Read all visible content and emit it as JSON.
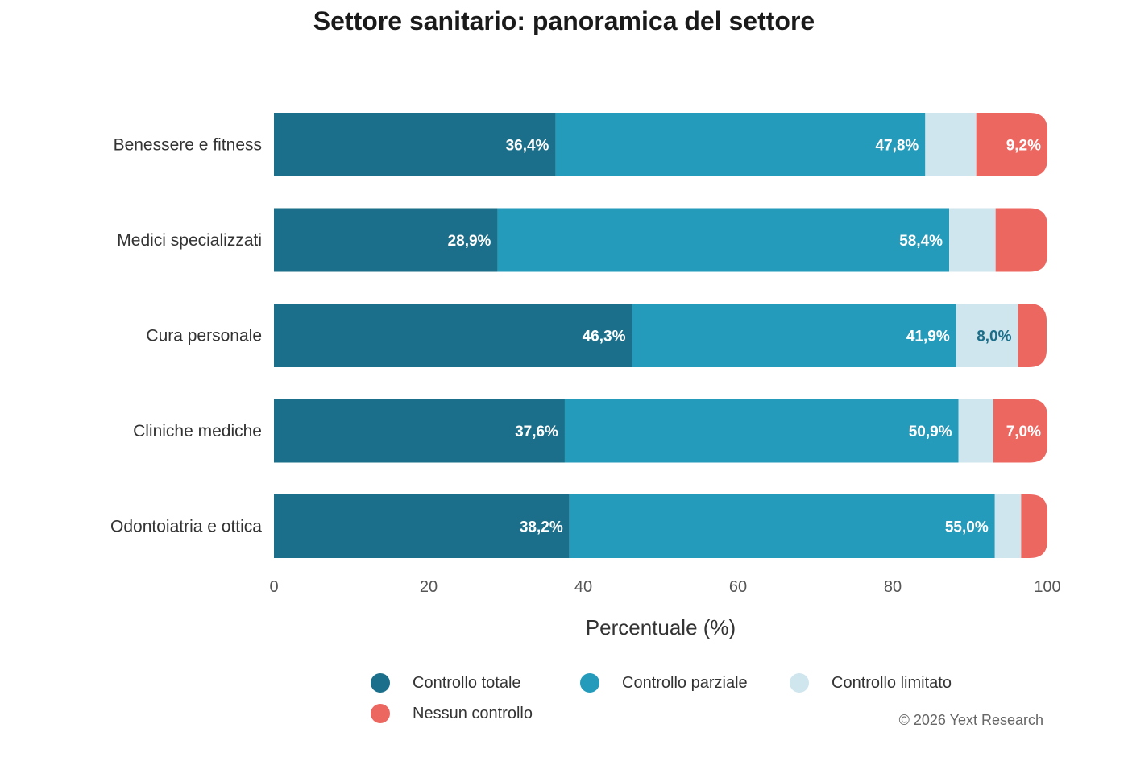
{
  "chart_data": {
    "type": "bar",
    "orientation": "horizontal",
    "stacked": true,
    "title": "Settore sanitario: panoramica del settore",
    "xlabel": "Percentuale (%)",
    "ylabel": "",
    "xlim": [
      0,
      100
    ],
    "xticks": [
      "0",
      "20",
      "40",
      "60",
      "80",
      "100"
    ],
    "categories": [
      "Benessere e fitness",
      "Medici specializzati",
      "Cura personale",
      "Cliniche mediche",
      "Odontoiatria e ottica"
    ],
    "series": [
      {
        "name": "Controllo totale",
        "color": "#1c6f8a",
        "label_color": "#ffffff",
        "values": [
          36.4,
          28.9,
          46.3,
          37.6,
          38.2
        ],
        "labels": [
          "36,4%",
          "28,9%",
          "46,3%",
          "37,6%",
          "38,2%"
        ]
      },
      {
        "name": "Controllo parziale",
        "color": "#259bbb",
        "label_color": "#ffffff",
        "values": [
          47.8,
          58.4,
          41.9,
          50.9,
          55.0
        ],
        "labels": [
          "47,8%",
          "58,4%",
          "41,9%",
          "50,9%",
          "55,0%"
        ]
      },
      {
        "name": "Controllo limitato",
        "color": "#cfe6ee",
        "label_color": "#1c6f8a",
        "values": [
          6.6,
          6.0,
          8.0,
          4.5,
          3.4
        ],
        "labels": [
          "",
          "",
          "8,0%",
          "",
          ""
        ]
      },
      {
        "name": "Nessun controllo",
        "color": "#ed6761",
        "label_color": "#ffffff",
        "values": [
          9.2,
          6.7,
          3.7,
          7.0,
          3.4
        ],
        "labels": [
          "9,2%",
          "",
          "",
          "7,0%",
          ""
        ]
      }
    ],
    "grid": false,
    "legend": "bottom"
  },
  "footer": {
    "copyright": "© 2026 Yext Research"
  }
}
